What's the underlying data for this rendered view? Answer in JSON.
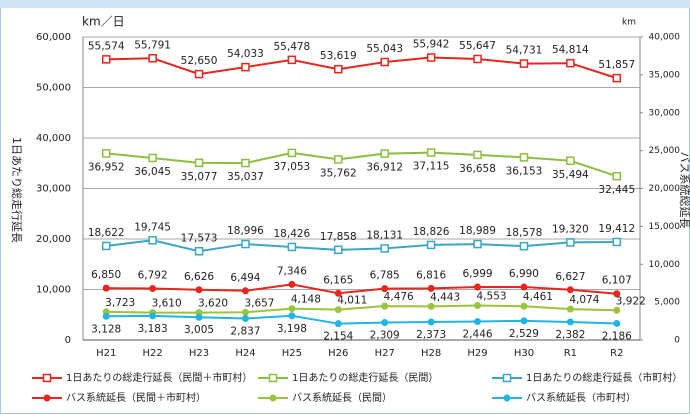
{
  "chart_data": {
    "type": "line",
    "y_unit": "km／日",
    "y2_unit": "km",
    "y_label": "1日あたり総走行延長",
    "y2_label": "バス系統総延長",
    "categories": [
      "H21",
      "H22",
      "H23",
      "H24",
      "H25",
      "H26",
      "H27",
      "H28",
      "H29",
      "H30",
      "R1",
      "R2"
    ],
    "ylim": [
      0,
      60000
    ],
    "yticks": [
      0,
      {
        "value": 10000,
        "label": "10,000"
      },
      {
        "value": 20000,
        "label": "20,000"
      },
      {
        "value": 30000,
        "label": "30,000"
      },
      {
        "value": 40000,
        "label": "40,000"
      },
      {
        "value": 50000,
        "label": "50,000"
      },
      {
        "value": 60000,
        "label": "60,000"
      }
    ],
    "y2lim": [
      0,
      40000
    ],
    "y2ticks": [
      0,
      {
        "value": 5000,
        "label": "5,000"
      },
      {
        "value": 10000,
        "label": "10,000"
      },
      {
        "value": 15000,
        "label": "15,000"
      },
      {
        "value": 20000,
        "label": "20,000"
      },
      {
        "value": 25000,
        "label": "25,000"
      },
      {
        "value": 30000,
        "label": "30,000"
      },
      {
        "value": 35000,
        "label": "35,000"
      },
      {
        "value": 40000,
        "label": "40,000"
      }
    ],
    "grid": true,
    "legend": "bottom",
    "series": [
      {
        "name": "1日あたりの総走行延長（民間＋市町村）",
        "color": "#e8261f",
        "marker": "square",
        "axis": "y",
        "values": [
          55574,
          55791,
          52650,
          54033,
          55478,
          53619,
          55043,
          55942,
          55647,
          54731,
          54814,
          51857
        ],
        "value_labels": [
          "55,574",
          "55,791",
          "52,650",
          "54,033",
          "55,478",
          "53,619",
          "55,043",
          "55,942",
          "55,647",
          "54,731",
          "54,814",
          "51,857"
        ]
      },
      {
        "name": "1日あたりの総走行延長（民間）",
        "color": "#8cbf3f",
        "marker": "square",
        "axis": "y",
        "values": [
          36952,
          36045,
          35077,
          35037,
          37053,
          35762,
          36912,
          37115,
          36658,
          36153,
          35494,
          32445
        ],
        "value_labels": [
          "36,952",
          "36,045",
          "35,077",
          "35,037",
          "37,053",
          "35,762",
          "36,912",
          "37,115",
          "36,658",
          "36,153",
          "35,494",
          "32,445"
        ]
      },
      {
        "name": "1日あたりの総走行延長（市町村）",
        "color": "#3aa6c4",
        "marker": "square",
        "axis": "y",
        "values": [
          18622,
          19745,
          17573,
          18996,
          18426,
          17858,
          18131,
          18826,
          18989,
          18578,
          19320,
          19412
        ],
        "value_labels": [
          "18,622",
          "19,745",
          "17,573",
          "18,996",
          "18,426",
          "17,858",
          "18,131",
          "18,826",
          "18,989",
          "18,578",
          "19,320",
          "19,412"
        ]
      },
      {
        "name": "バス系統延長（民間＋市町村）",
        "color": "#e8261f",
        "marker": "circle",
        "axis": "y2",
        "values": [
          6850,
          6792,
          6626,
          6494,
          7346,
          6165,
          6785,
          6816,
          6999,
          6990,
          6627,
          6107
        ],
        "value_labels": [
          "6,850",
          "6,792",
          "6,626",
          "6,494",
          "7,346",
          "6,165",
          "6,785",
          "6,816",
          "6,999",
          "6,990",
          "6,627",
          "6,107"
        ]
      },
      {
        "name": "バス系統延長（民間）",
        "color": "#9ac43c",
        "marker": "circle",
        "axis": "y2",
        "values": [
          3723,
          3610,
          3620,
          3657,
          4148,
          4011,
          4476,
          4443,
          4553,
          4461,
          4074,
          3922
        ],
        "value_labels": [
          "3,723",
          "3,610",
          "3,620",
          "3,657",
          "4,148",
          "4,011",
          "4,476",
          "4,443",
          "4,553",
          "4,461",
          "4,074",
          "3,922"
        ]
      },
      {
        "name": "バス系統延長（市町村）",
        "color": "#22b4e3",
        "marker": "circle",
        "axis": "y2",
        "values": [
          3128,
          3183,
          3005,
          2837,
          3198,
          2154,
          2309,
          2373,
          2446,
          2529,
          2382,
          2186
        ],
        "value_labels": [
          "3,128",
          "3,183",
          "3,005",
          "2,837",
          "3,198",
          "2,154",
          "2,309",
          "2,373",
          "2,446",
          "2,529",
          "2,382",
          "2,186"
        ]
      }
    ]
  }
}
